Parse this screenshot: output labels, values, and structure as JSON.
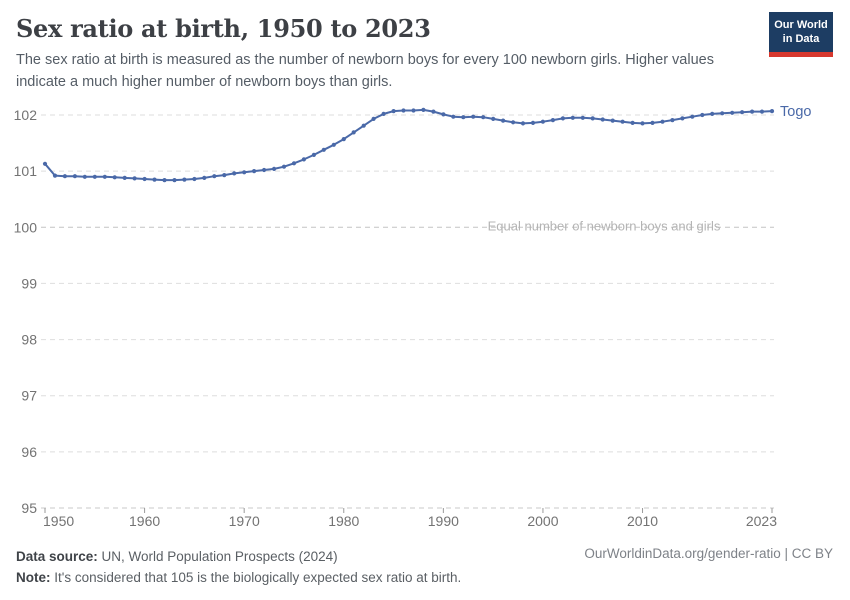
{
  "header": {
    "title": "Sex ratio at birth, 1950 to 2023",
    "subtitle": "The sex ratio at birth is measured as the number of newborn boys for every 100 newborn girls. Higher values indicate a much higher number of newborn boys than girls.",
    "logo": {
      "line1": "Our World",
      "line2": "in Data",
      "bg_color": "#1d3d63",
      "stripe_color": "#d7382e"
    }
  },
  "chart_data": {
    "type": "line",
    "title": "Sex ratio at birth, 1950 to 2023",
    "xlabel": "",
    "ylabel": "",
    "xlim": [
      1950,
      2023
    ],
    "ylim": [
      95,
      102
    ],
    "grid": "horizontal-dashed",
    "legend_position": "line-end-label",
    "yticks": [
      95,
      96,
      97,
      98,
      99,
      100,
      101,
      102
    ],
    "xticks": [
      {
        "year": 1950,
        "label": "1950",
        "anchor": "start"
      },
      {
        "year": 1960,
        "label": "1960",
        "anchor": "middle"
      },
      {
        "year": 1970,
        "label": "1970",
        "anchor": "middle"
      },
      {
        "year": 1980,
        "label": "1980",
        "anchor": "middle"
      },
      {
        "year": 1990,
        "label": "1990",
        "anchor": "middle"
      },
      {
        "year": 2000,
        "label": "2000",
        "anchor": "middle"
      },
      {
        "year": 2010,
        "label": "2010",
        "anchor": "middle"
      },
      {
        "year": 2023,
        "label": "2023",
        "anchor": "end"
      }
    ],
    "annotation": {
      "text": "Equal number of newborn boys and girls",
      "y_value": 100
    },
    "x": [
      1950,
      1951,
      1952,
      1953,
      1954,
      1955,
      1956,
      1957,
      1958,
      1959,
      1960,
      1961,
      1962,
      1963,
      1964,
      1965,
      1966,
      1967,
      1968,
      1969,
      1970,
      1971,
      1972,
      1973,
      1974,
      1975,
      1976,
      1977,
      1978,
      1979,
      1980,
      1981,
      1982,
      1983,
      1984,
      1985,
      1986,
      1987,
      1988,
      1989,
      1990,
      1991,
      1992,
      1993,
      1994,
      1995,
      1996,
      1997,
      1998,
      1999,
      2000,
      2001,
      2002,
      2003,
      2004,
      2005,
      2006,
      2007,
      2008,
      2009,
      2010,
      2011,
      2012,
      2013,
      2014,
      2015,
      2016,
      2017,
      2018,
      2019,
      2020,
      2021,
      2022,
      2023
    ],
    "series": [
      {
        "name": "Togo",
        "color": "#4a69a8",
        "values": [
          101.13,
          100.92,
          100.91,
          100.91,
          100.9,
          100.9,
          100.9,
          100.89,
          100.88,
          100.87,
          100.86,
          100.85,
          100.84,
          100.84,
          100.85,
          100.86,
          100.88,
          100.91,
          100.93,
          100.96,
          100.98,
          101.0,
          101.02,
          101.04,
          101.08,
          101.14,
          101.21,
          101.29,
          101.38,
          101.47,
          101.57,
          101.69,
          101.81,
          101.93,
          102.02,
          102.07,
          102.08,
          102.08,
          102.09,
          102.06,
          102.01,
          101.97,
          101.96,
          101.97,
          101.96,
          101.93,
          101.9,
          101.87,
          101.85,
          101.86,
          101.88,
          101.91,
          101.94,
          101.95,
          101.95,
          101.94,
          101.92,
          101.9,
          101.88,
          101.86,
          101.85,
          101.86,
          101.88,
          101.91,
          101.94,
          101.97,
          102.0,
          102.02,
          102.03,
          102.04,
          102.05,
          102.06,
          102.06,
          102.07
        ]
      }
    ],
    "colors": {
      "gridline": "#dedede",
      "gridline_zero_ref": "#c4c4c4",
      "axis_baseline": "#c9c9c9",
      "tick": "#9a9a9a",
      "axis_label": "#737373",
      "annotation_text": "#b4b4b4"
    }
  },
  "footer": {
    "source_label": "Data source:",
    "source_text": " UN, World Population Prospects (2024)",
    "note_label": "Note:",
    "note_text": " It's considered that 105 is the biologically expected sex ratio at birth.",
    "link_text": "OurWorldinData.org/gender-ratio | CC BY"
  }
}
